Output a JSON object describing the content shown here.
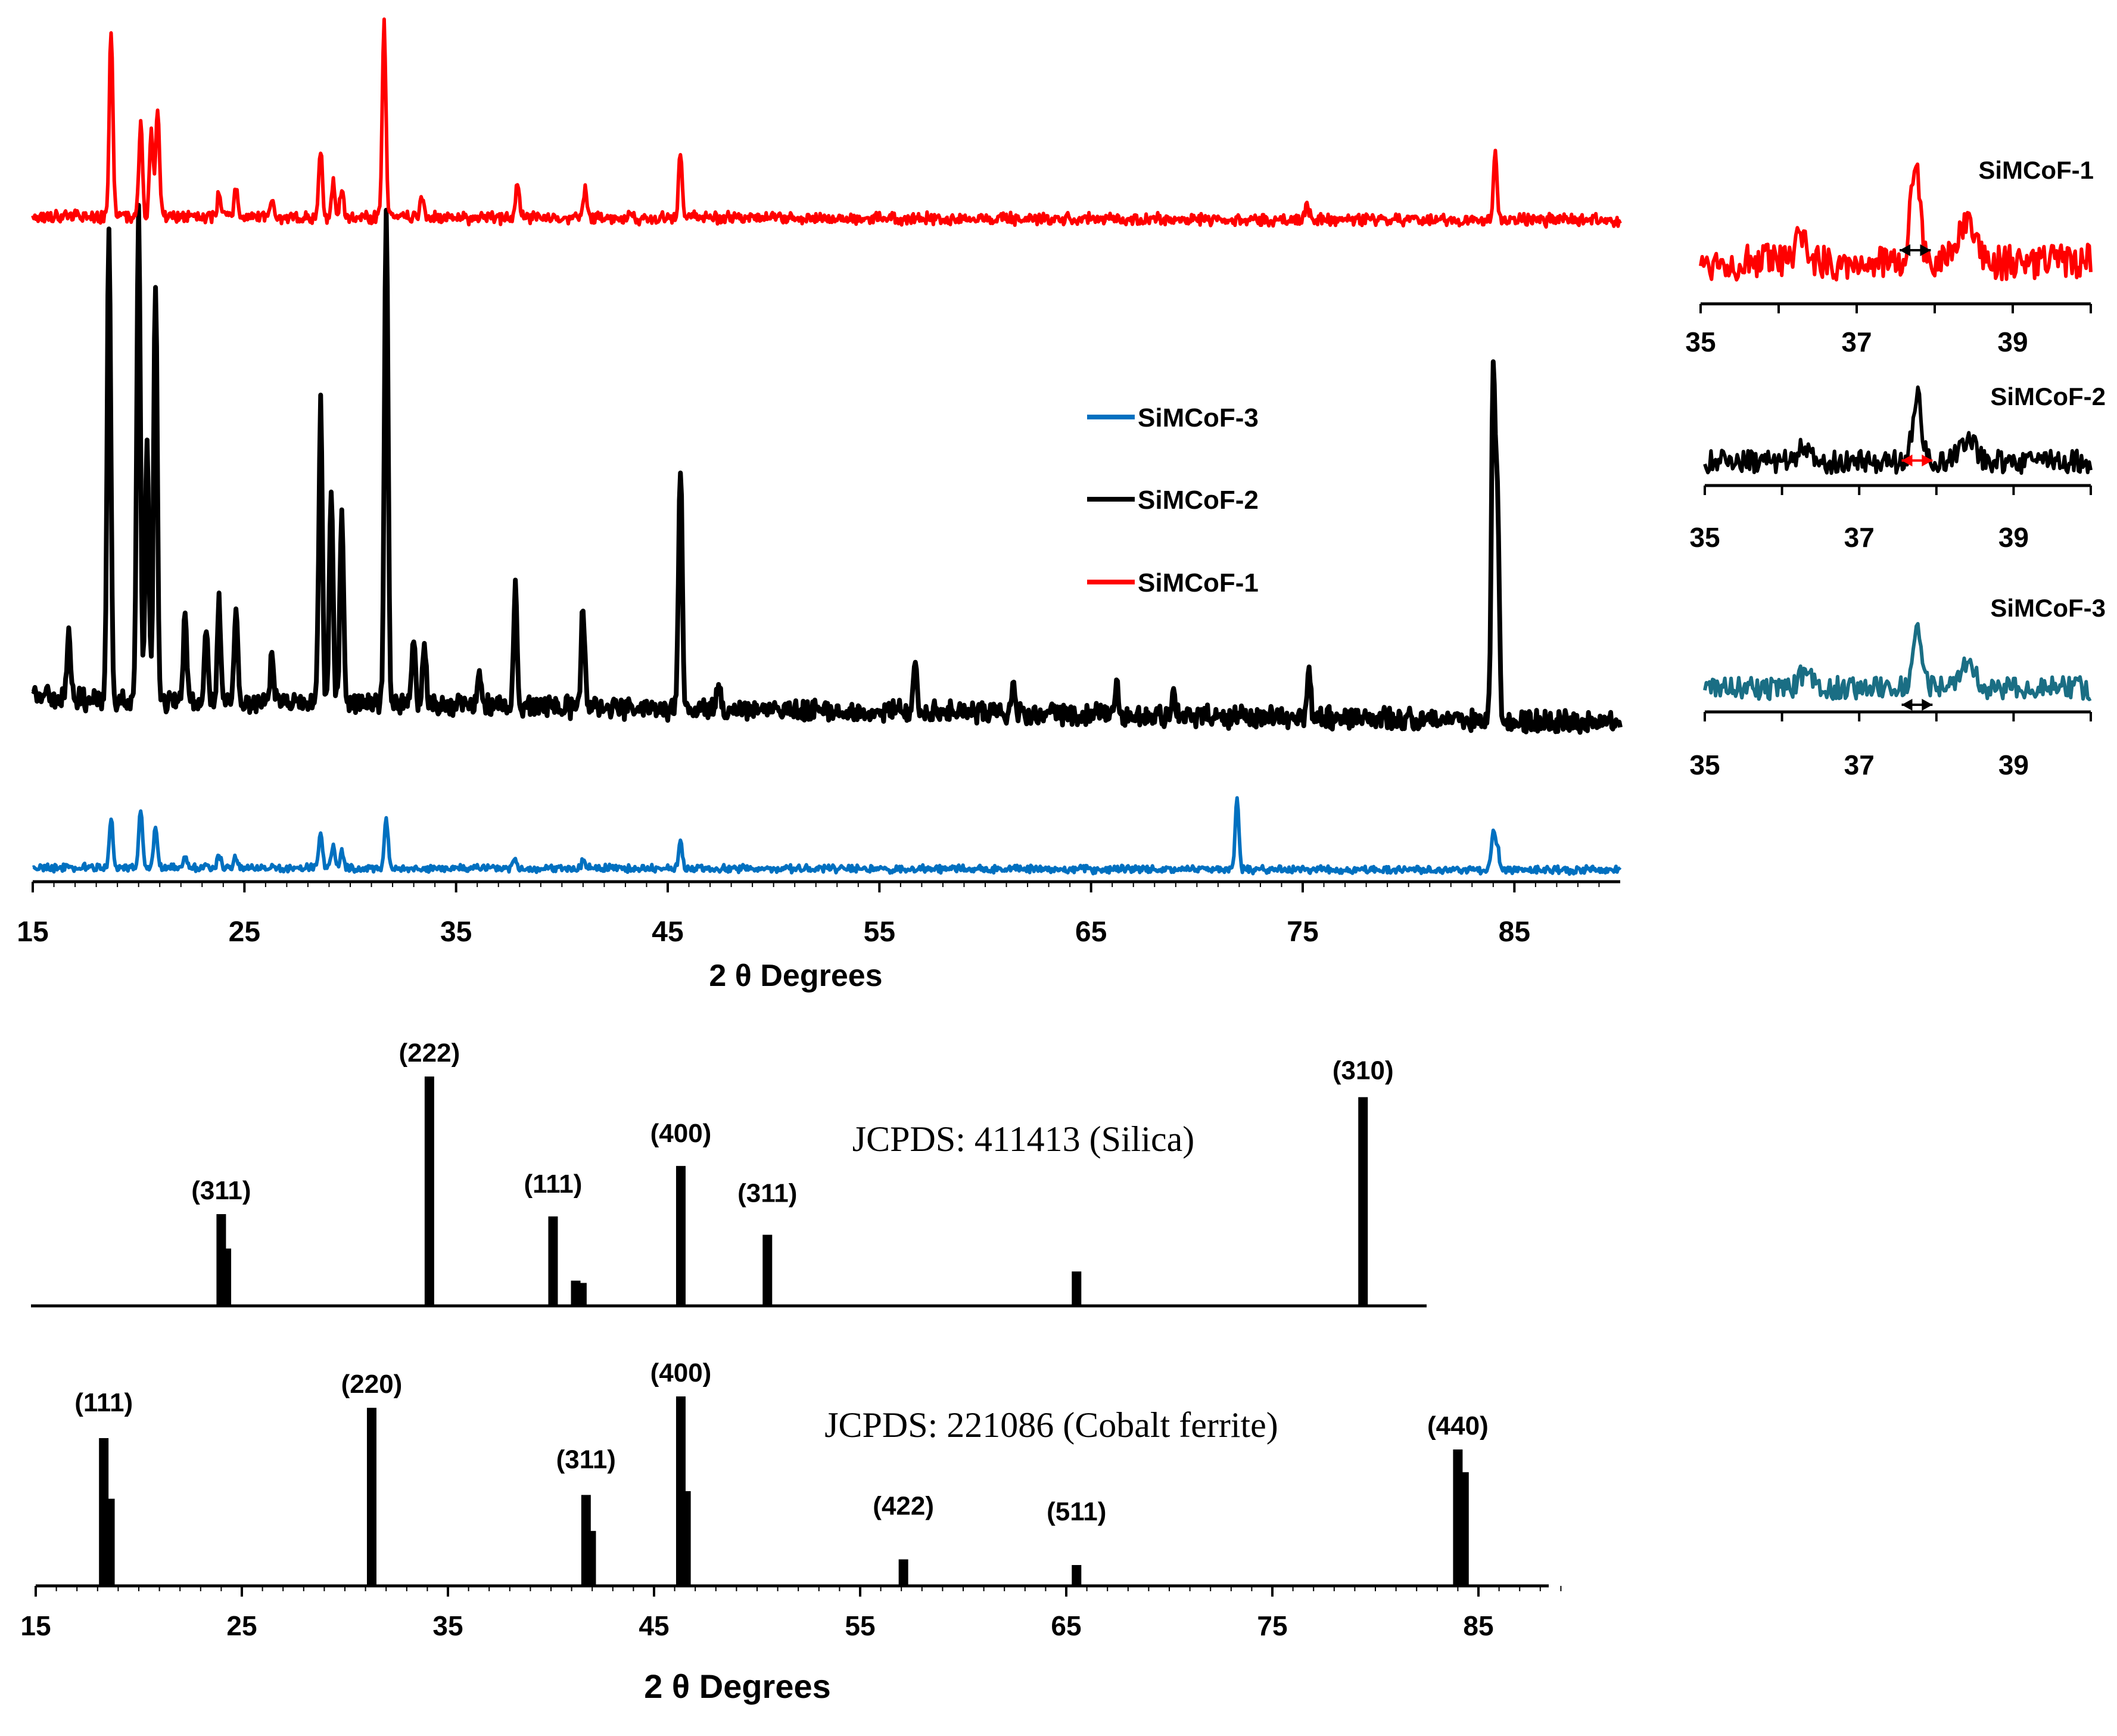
{
  "chart_data": [
    {
      "type": "line",
      "panel": "main-xrd",
      "xlabel": "2 θ Degrees",
      "ylabel": "",
      "xlim": [
        15,
        90
      ],
      "x_ticks": [
        "15",
        "25",
        "35",
        "45",
        "55",
        "65",
        "75",
        "85"
      ],
      "legend_position": "center",
      "legend": [
        "SiMCoF-3",
        "SiMCoF-2",
        "SiMCoF-1"
      ],
      "series": [
        {
          "name": "SiMCoF-1",
          "color": "#ff0000",
          "baseline": [
            [
              15,
              0.05
            ],
            [
              90,
              0.03
            ]
          ],
          "peaks": [
            [
              18.7,
              0.95
            ],
            [
              20.1,
              0.47
            ],
            [
              20.6,
              0.45
            ],
            [
              20.9,
              0.55
            ],
            [
              23.8,
              0.11
            ],
            [
              24.6,
              0.15
            ],
            [
              26.3,
              0.1
            ],
            [
              28.6,
              0.34
            ],
            [
              29.2,
              0.17
            ],
            [
              29.6,
              0.15
            ],
            [
              31.6,
              1.0
            ],
            [
              33.4,
              0.1
            ],
            [
              37.9,
              0.18
            ],
            [
              41.1,
              0.15
            ],
            [
              45.6,
              0.34
            ],
            [
              75.2,
              0.09
            ],
            [
              84.1,
              0.32
            ]
          ]
        },
        {
          "name": "SiMCoF-2",
          "color": "#000000",
          "baseline": [
            [
              15,
              0.07
            ],
            [
              90,
              0.02
            ]
          ],
          "peaks": [
            [
              16.7,
              0.13
            ],
            [
              18.6,
              0.95
            ],
            [
              20.0,
              1.0
            ],
            [
              20.4,
              0.52
            ],
            [
              20.8,
              0.85
            ],
            [
              22.2,
              0.18
            ],
            [
              23.2,
              0.14
            ],
            [
              23.8,
              0.2
            ],
            [
              24.6,
              0.2
            ],
            [
              26.3,
              0.1
            ],
            [
              28.6,
              0.6
            ],
            [
              29.1,
              0.42
            ],
            [
              29.6,
              0.39
            ],
            [
              31.7,
              1.0
            ],
            [
              33.0,
              0.14
            ],
            [
              33.5,
              0.13
            ],
            [
              36.1,
              0.07
            ],
            [
              37.8,
              0.24
            ],
            [
              41.0,
              0.2
            ],
            [
              45.6,
              0.49
            ],
            [
              47.4,
              0.06
            ],
            [
              56.7,
              0.11
            ],
            [
              61.3,
              0.05
            ],
            [
              66.2,
              0.06
            ],
            [
              68.9,
              0.04
            ],
            [
              75.3,
              0.1
            ],
            [
              84.0,
              0.7
            ],
            [
              84.2,
              0.45
            ]
          ]
        },
        {
          "name": "SiMCoF-3",
          "color": "#0070c0",
          "baseline": [
            [
              15,
              0.04
            ],
            [
              90,
              0.02
            ]
          ],
          "peaks": [
            [
              18.7,
              0.38
            ],
            [
              20.1,
              0.45
            ],
            [
              20.8,
              0.3
            ],
            [
              22.2,
              0.1
            ],
            [
              23.8,
              0.1
            ],
            [
              24.6,
              0.08
            ],
            [
              28.6,
              0.27
            ],
            [
              29.2,
              0.17
            ],
            [
              29.6,
              0.12
            ],
            [
              31.7,
              0.38
            ],
            [
              37.8,
              0.07
            ],
            [
              41.0,
              0.06
            ],
            [
              45.6,
              0.2
            ],
            [
              71.9,
              0.55
            ],
            [
              84.0,
              0.28
            ],
            [
              84.2,
              0.18
            ]
          ]
        }
      ]
    },
    {
      "type": "line",
      "panel": "inset-zoom",
      "xlim": [
        35,
        40
      ],
      "x_ticks": [
        "35",
        "37",
        "39"
      ],
      "insets": [
        {
          "name": "SiMCoF-1",
          "color": "#ff0000",
          "peak_center": 37.75,
          "fwhm_marker_color": "#000000"
        },
        {
          "name": "SiMCoF-2",
          "color": "#000000",
          "peak_center": 37.75,
          "fwhm_marker_color": "#ff0000"
        },
        {
          "name": "SiMCoF-3",
          "color": "#1a6e84",
          "peak_center": 37.75,
          "fwhm_marker_color": "#000000"
        }
      ]
    },
    {
      "type": "bar",
      "panel": "reference-stick",
      "xlabel": "2 θ Degrees",
      "xlim": [
        15,
        90
      ],
      "x_ticks": [
        "15",
        "25",
        "35",
        "45",
        "55",
        "65",
        "75",
        "85"
      ],
      "references": [
        {
          "name": "JCPDS: 411413 (Silica)",
          "sticks": [
            {
              "x": 24.0,
              "h": 0.4,
              "label": "(311)"
            },
            {
              "x": 24.25,
              "h": 0.25,
              "label": ""
            },
            {
              "x": 34.1,
              "h": 1.0,
              "label": "(222)"
            },
            {
              "x": 40.1,
              "h": 0.39,
              "label": "(111)"
            },
            {
              "x": 41.2,
              "h": 0.11,
              "label": ""
            },
            {
              "x": 41.5,
              "h": 0.1,
              "label": ""
            },
            {
              "x": 46.3,
              "h": 0.61,
              "label": "(400)"
            },
            {
              "x": 50.5,
              "h": 0.31,
              "label": "(311)"
            },
            {
              "x": 65.5,
              "h": 0.15,
              "label": ""
            },
            {
              "x": 79.4,
              "h": 0.91,
              "label": "(310)"
            }
          ]
        },
        {
          "name": "JCPDS: 221086 (Cobalt ferrite)",
          "sticks": [
            {
              "x": 18.3,
              "h": 0.78,
              "label": "(111)"
            },
            {
              "x": 18.6,
              "h": 0.46,
              "label": ""
            },
            {
              "x": 31.3,
              "h": 0.94,
              "label": "(220)"
            },
            {
              "x": 41.7,
              "h": 0.48,
              "label": "(311)"
            },
            {
              "x": 41.95,
              "h": 0.29,
              "label": ""
            },
            {
              "x": 46.3,
              "h": 1.0,
              "label": "(400)"
            },
            {
              "x": 46.55,
              "h": 0.5,
              "label": ""
            },
            {
              "x": 57.1,
              "h": 0.14,
              "label": "(422)"
            },
            {
              "x": 65.5,
              "h": 0.11,
              "label": "(511)"
            },
            {
              "x": 84.0,
              "h": 0.72,
              "label": "(440)"
            },
            {
              "x": 84.3,
              "h": 0.6,
              "label": ""
            }
          ]
        }
      ]
    }
  ]
}
